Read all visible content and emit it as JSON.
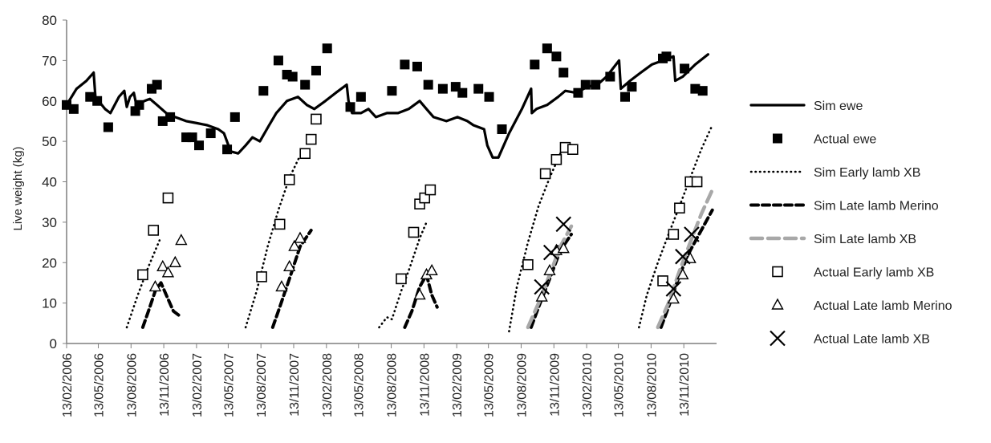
{
  "chart_data": {
    "type": "line",
    "ylabel": "Live weight (kg)",
    "ylim": [
      0,
      80
    ],
    "yticks": [
      0,
      10,
      20,
      30,
      40,
      50,
      60,
      70,
      80
    ],
    "xticks": [
      "13/02/2006",
      "13/05/2006",
      "13/08/2006",
      "13/11/2006",
      "13/02/2007",
      "13/05/2007",
      "13/08/2007",
      "13/11/2007",
      "13/02/2008",
      "13/05/2008",
      "13/08/2008",
      "13/11/2008",
      "13/02/2009",
      "13/05/2009",
      "13/08/2009",
      "13/11/2009",
      "13/02/2010",
      "13/05/2010",
      "13/08/2010",
      "13/11/2010"
    ],
    "xlim": [
      "13/02/2006",
      "13/02/2011"
    ],
    "grid": false,
    "legend_position": "right",
    "legend": [
      {
        "key": "sim_ewe",
        "label": "Sim ewe"
      },
      {
        "key": "actual_ewe",
        "label": "Actual ewe"
      },
      {
        "key": "sim_early_xb",
        "label": "Sim Early lamb XB"
      },
      {
        "key": "sim_late_merino",
        "label": "Sim Late lamb Merino"
      },
      {
        "key": "sim_late_xb",
        "label": "Sim Late lamb XB"
      },
      {
        "key": "actual_early_xb",
        "label": "Actual Early lamb XB"
      },
      {
        "key": "actual_late_merino",
        "label": "Actual Late lamb Merino"
      },
      {
        "key": "actual_late_xb",
        "label": "Actual Late lamb XB"
      }
    ],
    "colors": {
      "black": "#000000",
      "gray": "#a8a8a8"
    },
    "series": [
      {
        "key": "sim_ewe",
        "style": "solid",
        "color": "#000000",
        "points": [
          [
            "13/02/2006",
            59
          ],
          [
            "13/03/2006",
            63
          ],
          [
            "10/04/2006",
            65
          ],
          [
            "30/04/2006",
            67
          ],
          [
            "05/05/2006",
            61
          ],
          [
            "01/06/2006",
            58
          ],
          [
            "16/06/2006",
            57
          ],
          [
            "10/07/2006",
            61
          ],
          [
            "25/07/2006",
            62.5
          ],
          [
            "01/08/2006",
            58.5
          ],
          [
            "10/08/2006",
            61
          ],
          [
            "21/08/2006",
            62
          ],
          [
            "28/08/2006",
            59
          ],
          [
            "20/09/2006",
            60
          ],
          [
            "05/10/2006",
            60.5
          ],
          [
            "25/10/2006",
            59
          ],
          [
            "20/11/2006",
            57
          ],
          [
            "15/12/2006",
            56
          ],
          [
            "15/01/2007",
            55
          ],
          [
            "15/02/2007",
            54.5
          ],
          [
            "15/03/2007",
            54
          ],
          [
            "15/04/2007",
            53
          ],
          [
            "01/05/2007",
            52
          ],
          [
            "20/05/2007",
            47.5
          ],
          [
            "10/06/2007",
            47
          ],
          [
            "01/07/2007",
            49
          ],
          [
            "20/07/2007",
            51
          ],
          [
            "10/08/2007",
            50
          ],
          [
            "05/09/2007",
            54
          ],
          [
            "25/09/2007",
            57
          ],
          [
            "25/10/2007",
            60
          ],
          [
            "25/11/2007",
            61
          ],
          [
            "20/12/2007",
            59
          ],
          [
            "10/01/2008",
            58
          ],
          [
            "10/02/2008",
            60
          ],
          [
            "10/03/2008",
            62
          ],
          [
            "10/04/2008",
            64
          ],
          [
            "15/04/2008",
            60
          ],
          [
            "25/04/2008",
            57
          ],
          [
            "20/05/2008",
            57
          ],
          [
            "10/06/2008",
            58
          ],
          [
            "01/07/2008",
            56
          ],
          [
            "01/08/2008",
            57
          ],
          [
            "01/09/2008",
            57
          ],
          [
            "01/10/2008",
            58
          ],
          [
            "01/11/2008",
            60
          ],
          [
            "20/11/2008",
            58
          ],
          [
            "10/12/2008",
            56
          ],
          [
            "15/01/2009",
            55
          ],
          [
            "15/02/2009",
            56
          ],
          [
            "15/03/2009",
            55
          ],
          [
            "01/04/2009",
            54
          ],
          [
            "01/05/2009",
            53
          ],
          [
            "10/05/2009",
            49
          ],
          [
            "25/05/2009",
            46
          ],
          [
            "10/06/2009",
            46
          ],
          [
            "10/07/2009",
            52
          ],
          [
            "15/08/2009",
            58
          ],
          [
            "10/09/2009",
            63
          ],
          [
            "12/09/2009",
            57
          ],
          [
            "25/09/2009",
            58
          ],
          [
            "25/10/2009",
            59
          ],
          [
            "25/11/2009",
            61
          ],
          [
            "15/12/2009",
            62.5
          ],
          [
            "15/01/2010",
            62
          ],
          [
            "15/02/2010",
            63.5
          ],
          [
            "15/03/2010",
            64
          ],
          [
            "10/04/2010",
            66
          ],
          [
            "15/05/2010",
            70
          ],
          [
            "20/05/2010",
            63
          ],
          [
            "15/06/2010",
            65
          ],
          [
            "15/07/2010",
            67
          ],
          [
            "15/08/2010",
            69
          ],
          [
            "15/09/2010",
            70
          ],
          [
            "15/10/2010",
            71
          ],
          [
            "20/10/2010",
            65
          ],
          [
            "10/11/2010",
            66
          ],
          [
            "15/12/2010",
            69
          ],
          [
            "20/01/2011",
            71.5
          ]
        ]
      },
      {
        "key": "sim_early_xb",
        "style": "dotted",
        "color": "#000000",
        "points": [
          [
            "01/08/2006",
            4
          ],
          [
            "01/09/2006",
            12
          ],
          [
            "01/10/2006",
            19
          ],
          [
            "01/11/2006",
            25.5
          ],
          [
            "01/07/2007",
            4
          ],
          [
            "01/08/2007",
            13
          ],
          [
            "01/09/2007",
            24
          ],
          [
            "01/10/2007",
            33
          ],
          [
            "01/11/2007",
            41
          ],
          [
            "01/12/2007",
            46.5
          ],
          [
            "10/07/2008",
            4
          ],
          [
            "01/08/2008",
            6.5
          ],
          [
            "15/08/2008",
            6
          ],
          [
            "10/09/2008",
            13
          ],
          [
            "01/10/2008",
            18
          ],
          [
            "01/11/2008",
            26
          ],
          [
            "20/11/2008",
            30
          ],
          [
            "10/07/2009",
            3
          ],
          [
            "01/08/2009",
            14
          ],
          [
            "01/09/2009",
            25
          ],
          [
            "01/10/2009",
            34
          ],
          [
            "01/11/2009",
            41
          ],
          [
            "01/12/2009",
            47
          ],
          [
            "10/07/2010",
            4
          ],
          [
            "01/08/2010",
            12
          ],
          [
            "01/09/2010",
            20
          ],
          [
            "01/10/2010",
            27
          ],
          [
            "01/11/2010",
            34
          ],
          [
            "01/12/2010",
            41
          ],
          [
            "01/01/2011",
            48
          ],
          [
            "01/02/2011",
            54
          ]
        ]
      },
      {
        "key": "sim_late_merino",
        "style": "dashed",
        "color": "#000000",
        "points": [
          [
            "15/09/2006",
            4
          ],
          [
            "01/10/2006",
            8
          ],
          [
            "20/10/2006",
            13
          ],
          [
            "05/11/2006",
            15
          ],
          [
            "20/11/2006",
            12
          ],
          [
            "10/12/2006",
            8
          ],
          [
            "25/12/2006",
            7
          ],
          [
            "15/09/2007",
            4
          ],
          [
            "01/10/2007",
            8
          ],
          [
            "01/11/2007",
            16
          ],
          [
            "01/12/2007",
            24
          ],
          [
            "01/01/2008",
            28
          ],
          [
            "20/09/2008",
            4
          ],
          [
            "10/10/2008",
            8
          ],
          [
            "01/11/2008",
            14
          ],
          [
            "20/11/2008",
            17
          ],
          [
            "05/12/2008",
            12
          ],
          [
            "20/12/2008",
            9
          ],
          [
            "10/09/2009",
            4
          ],
          [
            "01/10/2009",
            9
          ],
          [
            "01/11/2009",
            16
          ],
          [
            "01/12/2009",
            23
          ],
          [
            "01/01/2010",
            27
          ],
          [
            "10/09/2010",
            4
          ],
          [
            "01/10/2010",
            9
          ],
          [
            "01/11/2010",
            17
          ],
          [
            "01/12/2010",
            23
          ],
          [
            "01/01/2011",
            28
          ],
          [
            "01/02/2011",
            33
          ]
        ]
      },
      {
        "key": "sim_late_xb",
        "style": "longdash",
        "color": "#a8a8a8",
        "points": [
          [
            "01/09/2009",
            4
          ],
          [
            "01/10/2009",
            10
          ],
          [
            "01/11/2009",
            17
          ],
          [
            "01/12/2009",
            24
          ],
          [
            "01/01/2010",
            29
          ],
          [
            "01/09/2010",
            4
          ],
          [
            "01/10/2010",
            10
          ],
          [
            "01/11/2010",
            18
          ],
          [
            "01/12/2010",
            25
          ],
          [
            "01/01/2011",
            32
          ],
          [
            "01/02/2011",
            38
          ]
        ]
      }
    ],
    "markers": [
      {
        "key": "actual_ewe",
        "symbol": "filled-square",
        "points": [
          [
            "13/02/2006",
            59
          ],
          [
            "05/03/2006",
            58
          ],
          [
            "20/04/2006",
            61
          ],
          [
            "10/05/2006",
            60
          ],
          [
            "10/06/2006",
            53.5
          ],
          [
            "25/08/2006",
            57.5
          ],
          [
            "05/09/2006",
            59
          ],
          [
            "10/10/2006",
            63
          ],
          [
            "25/10/2006",
            64
          ],
          [
            "10/11/2006",
            55
          ],
          [
            "01/12/2006",
            56
          ],
          [
            "15/01/2007",
            51
          ],
          [
            "01/02/2007",
            51
          ],
          [
            "20/02/2007",
            49
          ],
          [
            "25/03/2007",
            52
          ],
          [
            "10/05/2007",
            48
          ],
          [
            "01/06/2007",
            56
          ],
          [
            "20/08/2007",
            62.5
          ],
          [
            "01/10/2007",
            70
          ],
          [
            "25/10/2007",
            66.5
          ],
          [
            "10/11/2007",
            66
          ],
          [
            "15/12/2007",
            64
          ],
          [
            "15/01/2008",
            67.5
          ],
          [
            "15/02/2008",
            73
          ],
          [
            "20/04/2008",
            58.5
          ],
          [
            "20/05/2008",
            61
          ],
          [
            "15/08/2008",
            62.5
          ],
          [
            "20/09/2008",
            69
          ],
          [
            "25/10/2008",
            68.5
          ],
          [
            "25/11/2008",
            64
          ],
          [
            "05/01/2009",
            63
          ],
          [
            "10/02/2009",
            63.5
          ],
          [
            "01/03/2009",
            62
          ],
          [
            "15/04/2009",
            63
          ],
          [
            "15/05/2009",
            61
          ],
          [
            "20/06/2009",
            53
          ],
          [
            "20/09/2009",
            69
          ],
          [
            "25/10/2009",
            73
          ],
          [
            "20/11/2009",
            71
          ],
          [
            "10/12/2009",
            67
          ],
          [
            "20/01/2010",
            62
          ],
          [
            "10/02/2010",
            64
          ],
          [
            "10/03/2010",
            64
          ],
          [
            "20/04/2010",
            66
          ],
          [
            "01/06/2010",
            61
          ],
          [
            "20/06/2010",
            63.5
          ],
          [
            "15/09/2010",
            70.5
          ],
          [
            "25/09/2010",
            71
          ],
          [
            "15/11/2010",
            68
          ],
          [
            "15/12/2010",
            63
          ],
          [
            "05/01/2011",
            62.5
          ]
        ]
      },
      {
        "key": "actual_early_xb",
        "symbol": "open-square",
        "points": [
          [
            "15/09/2006",
            17
          ],
          [
            "15/10/2006",
            28
          ],
          [
            "25/11/2006",
            36
          ],
          [
            "15/08/2007",
            16.5
          ],
          [
            "05/10/2007",
            29.5
          ],
          [
            "01/11/2007",
            40.5
          ],
          [
            "15/12/2007",
            47
          ],
          [
            "01/01/2008",
            50.5
          ],
          [
            "15/01/2008",
            55.5
          ],
          [
            "10/09/2008",
            16
          ],
          [
            "15/10/2008",
            27.5
          ],
          [
            "01/11/2008",
            34.5
          ],
          [
            "15/11/2008",
            36
          ],
          [
            "01/12/2008",
            38
          ],
          [
            "01/09/2009",
            19.5
          ],
          [
            "20/10/2009",
            42
          ],
          [
            "20/11/2009",
            45.5
          ],
          [
            "15/12/2009",
            48.5
          ],
          [
            "05/01/2010",
            48
          ],
          [
            "15/09/2010",
            15.5
          ],
          [
            "15/10/2010",
            27
          ],
          [
            "01/11/2010",
            33.5
          ],
          [
            "01/12/2010",
            40
          ],
          [
            "20/12/2010",
            40
          ]
        ]
      },
      {
        "key": "actual_late_merino",
        "symbol": "open-triangle",
        "points": [
          [
            "20/10/2006",
            14
          ],
          [
            "10/11/2006",
            19
          ],
          [
            "25/11/2006",
            17.5
          ],
          [
            "15/12/2006",
            20
          ],
          [
            "01/01/2007",
            25.5
          ],
          [
            "10/10/2007",
            14
          ],
          [
            "01/11/2007",
            19
          ],
          [
            "15/11/2007",
            24
          ],
          [
            "01/12/2007",
            26
          ],
          [
            "01/11/2008",
            12
          ],
          [
            "20/11/2008",
            17
          ],
          [
            "05/12/2008",
            18
          ],
          [
            "10/10/2009",
            11.5
          ],
          [
            "01/11/2009",
            18
          ],
          [
            "20/11/2009",
            23
          ],
          [
            "10/12/2009",
            23.5
          ],
          [
            "15/10/2010",
            11
          ],
          [
            "10/11/2010",
            17
          ],
          [
            "01/12/2010",
            21
          ]
        ]
      },
      {
        "key": "actual_late_xb",
        "symbol": "cross",
        "points": [
          [
            "10/10/2009",
            14
          ],
          [
            "05/11/2009",
            22.5
          ],
          [
            "10/12/2009",
            29.5
          ],
          [
            "15/10/2010",
            13.5
          ],
          [
            "10/11/2010",
            21.5
          ],
          [
            "05/12/2010",
            27
          ]
        ]
      }
    ]
  }
}
